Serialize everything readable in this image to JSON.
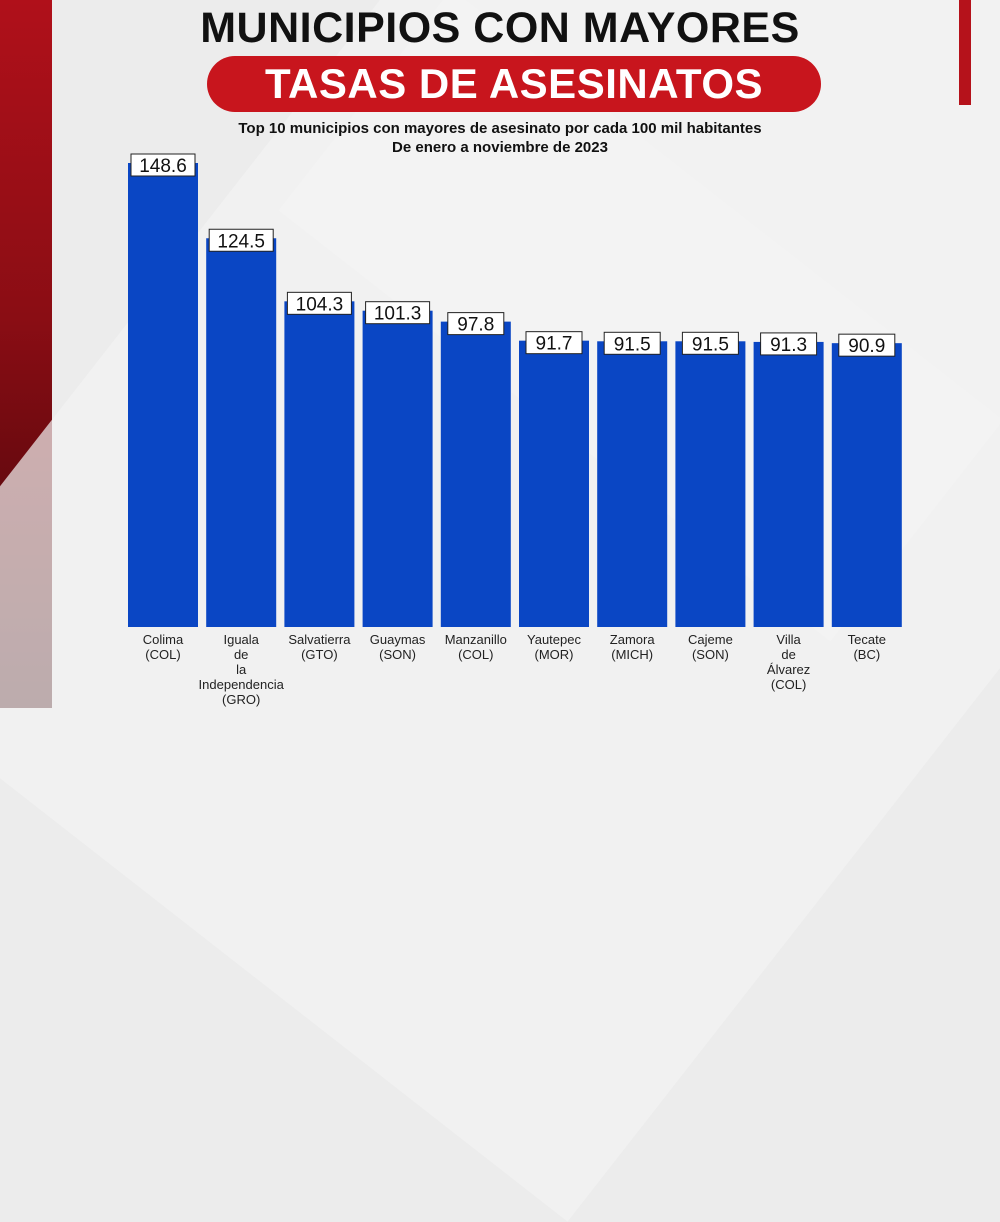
{
  "header": {
    "title_line1": "MUNICIPIOS CON MAYORES",
    "title_line2": "TASAS DE ASESINATOS",
    "subtitle_line1": "Top 10 municipios con mayores de asesinato por cada 100 mil habitantes",
    "subtitle_line2": "De enero a noviembre de 2023"
  },
  "colors": {
    "bar": "#0a46c4",
    "accent": "#c8151d"
  },
  "chart_data": {
    "type": "bar",
    "title": "MUNICIPIOS CON MAYORES TASAS DE ASESINATOS",
    "subtitle": "Top 10 municipios con mayores de asesinato por cada 100 mil habitantes",
    "categories": [
      [
        "Colima",
        "(COL)"
      ],
      [
        "Iguala",
        "de",
        "la",
        "Independencia",
        "(GRO)"
      ],
      [
        "Salvatierra",
        "(GTO)"
      ],
      [
        "Guaymas",
        "(SON)"
      ],
      [
        "Manzanillo",
        "(COL)"
      ],
      [
        "Yautepec",
        "(MOR)"
      ],
      [
        "Zamora",
        "(MICH)"
      ],
      [
        "Cajeme",
        "(SON)"
      ],
      [
        "Villa",
        "de",
        "Álvarez",
        "(COL)"
      ],
      [
        "Tecate",
        "(BC)"
      ]
    ],
    "values": [
      148.6,
      124.5,
      104.3,
      101.3,
      97.8,
      91.7,
      91.5,
      91.5,
      91.3,
      90.9
    ],
    "value_labels": [
      "148.6",
      "124.5",
      "104.3",
      "101.3",
      "97.8",
      "91.7",
      "91.5",
      "91.5",
      "91.3",
      "90.9"
    ],
    "ylim": [
      0,
      150
    ],
    "grid": false,
    "legend": "none"
  }
}
